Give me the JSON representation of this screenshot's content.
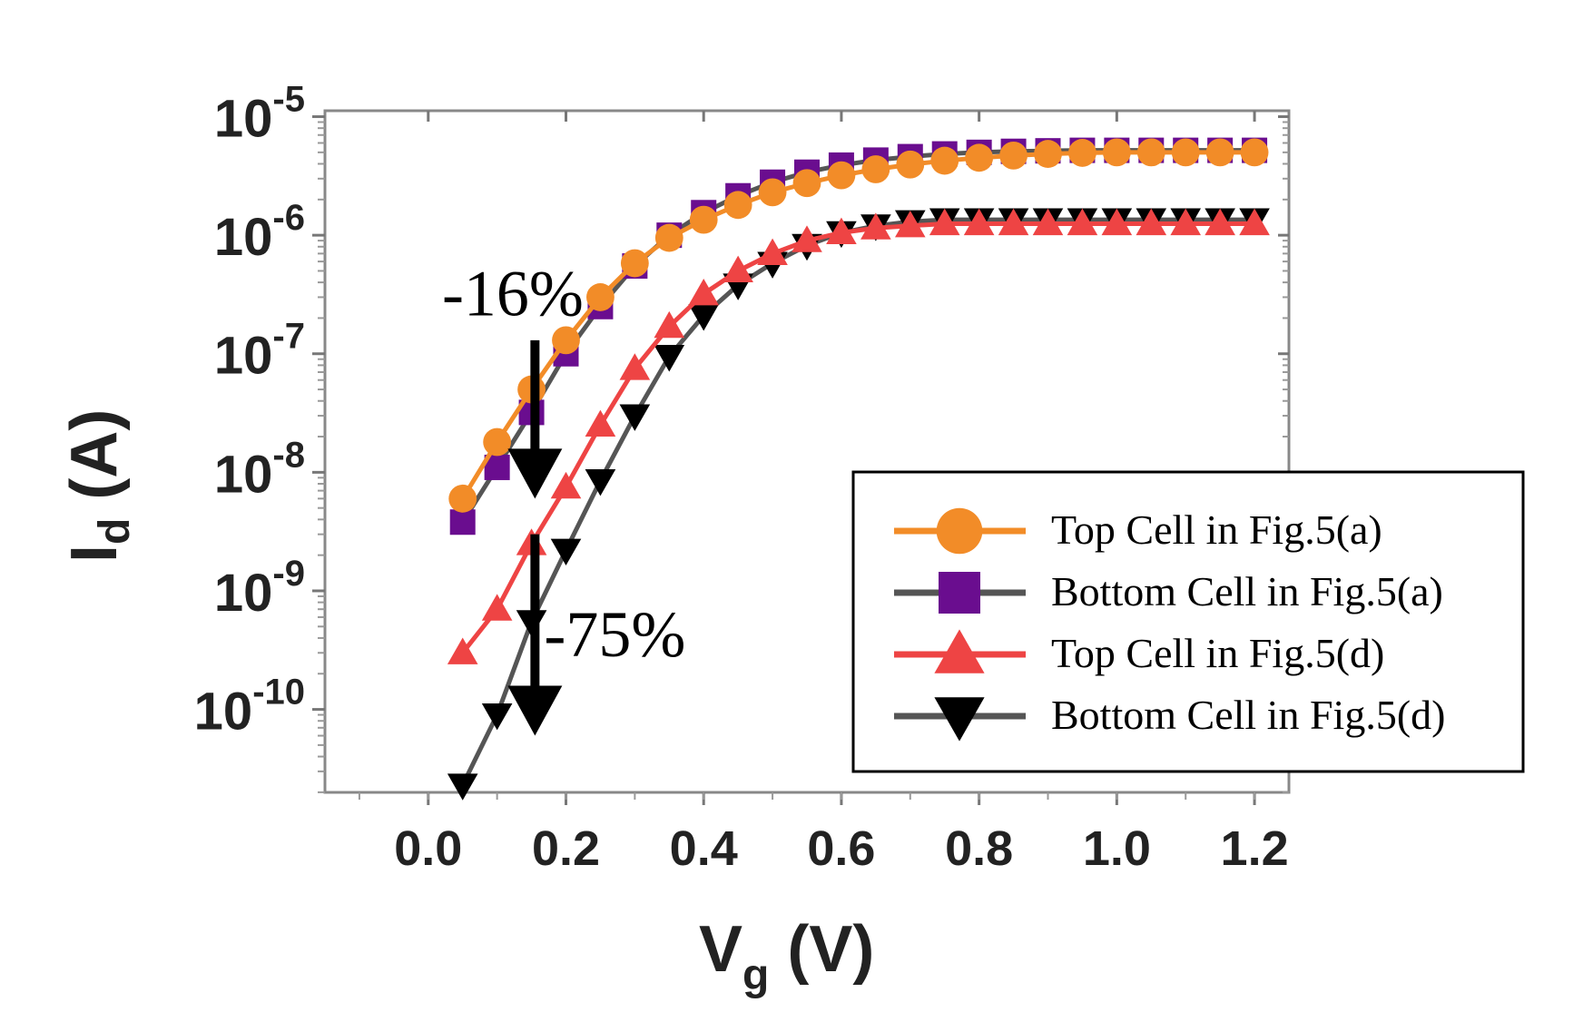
{
  "chart_data": {
    "type": "line",
    "xlabel": {
      "main": "V",
      "sub": "g",
      "unit": " (V)"
    },
    "ylabel": {
      "main": "I",
      "sub": "d",
      "unit": " (A)"
    },
    "xlim": [
      -0.15,
      1.25
    ],
    "ylim_log10": [
      -10.7,
      -4.95
    ],
    "y_scale": "log",
    "x_ticks": [
      0.0,
      0.2,
      0.4,
      0.6,
      0.8,
      1.0,
      1.2
    ],
    "x_tick_labels": [
      "0.0",
      "0.2",
      "0.4",
      "0.6",
      "0.8",
      "1.0",
      "1.2"
    ],
    "y_ticks": [
      {
        "base": "10",
        "exp": "-5",
        "log": -5
      },
      {
        "base": "10",
        "exp": "-6",
        "log": -6
      },
      {
        "base": "10",
        "exp": "-7",
        "log": -7
      },
      {
        "base": "10",
        "exp": "-8",
        "log": -8
      },
      {
        "base": "10",
        "exp": "-9",
        "log": -9
      },
      {
        "base": "10",
        "exp": "-10",
        "log": -10
      }
    ],
    "grid": false,
    "legend_position": "right-middle",
    "series": [
      {
        "name": "Top Cell in Fig.5(a)",
        "color": "#f28c28",
        "line_color": "#f28c28",
        "marker": "circle",
        "x": [
          0.05,
          0.1,
          0.15,
          0.2,
          0.25,
          0.3,
          0.35,
          0.4,
          0.45,
          0.5,
          0.55,
          0.6,
          0.65,
          0.7,
          0.75,
          0.8,
          0.85,
          0.9,
          0.95,
          1.0,
          1.05,
          1.1,
          1.15,
          1.2
        ],
        "y": [
          6e-09,
          1.8e-08,
          5e-08,
          1.3e-07,
          3e-07,
          5.8e-07,
          9.5e-07,
          1.35e-06,
          1.8e-06,
          2.3e-06,
          2.75e-06,
          3.2e-06,
          3.6e-06,
          3.95e-06,
          4.25e-06,
          4.5e-06,
          4.7e-06,
          4.85e-06,
          4.95e-06,
          5e-06,
          5e-06,
          5e-06,
          5e-06,
          5e-06
        ]
      },
      {
        "name": "Bottom Cell in Fig.5(a)",
        "color": "#6a0d8f",
        "line_color": "#555555",
        "marker": "square",
        "x": [
          0.05,
          0.1,
          0.15,
          0.2,
          0.25,
          0.3,
          0.35,
          0.4,
          0.45,
          0.5,
          0.55,
          0.6,
          0.65,
          0.7,
          0.75,
          0.8,
          0.85,
          0.9,
          0.95,
          1.0,
          1.05,
          1.1,
          1.15,
          1.2
        ],
        "y": [
          3.8e-09,
          1.1e-08,
          3.2e-08,
          1e-07,
          2.5e-07,
          5.5e-07,
          1e-06,
          1.55e-06,
          2.15e-06,
          2.8e-06,
          3.4e-06,
          3.9e-06,
          4.3e-06,
          4.6e-06,
          4.85e-06,
          5e-06,
          5.1e-06,
          5.15e-06,
          5.2e-06,
          5.2e-06,
          5.2e-06,
          5.2e-06,
          5.2e-06,
          5.2e-06
        ]
      },
      {
        "name": "Top Cell in Fig.5(d)",
        "color": "#ee4444",
        "line_color": "#ee4444",
        "marker": "triangle-up",
        "x": [
          0.05,
          0.1,
          0.15,
          0.2,
          0.25,
          0.3,
          0.35,
          0.4,
          0.45,
          0.5,
          0.55,
          0.6,
          0.65,
          0.7,
          0.75,
          0.8,
          0.85,
          0.9,
          0.95,
          1.0,
          1.05,
          1.1,
          1.15,
          1.2
        ],
        "y": [
          3e-10,
          7e-10,
          2.5e-09,
          7.5e-09,
          2.5e-08,
          7.5e-08,
          1.7e-07,
          3.2e-07,
          5e-07,
          7e-07,
          9e-07,
          1.05e-06,
          1.15e-06,
          1.2e-06,
          1.25e-06,
          1.25e-06,
          1.25e-06,
          1.25e-06,
          1.25e-06,
          1.25e-06,
          1.25e-06,
          1.25e-06,
          1.25e-06,
          1.25e-06
        ]
      },
      {
        "name": "Bottom Cell in Fig.5(d)",
        "color": "#000000",
        "line_color": "#555555",
        "marker": "triangle-down",
        "x": [
          0.05,
          0.1,
          0.15,
          0.2,
          0.25,
          0.3,
          0.35,
          0.4,
          0.45,
          0.5,
          0.55,
          0.6,
          0.65,
          0.7,
          0.75,
          0.8,
          0.85,
          0.9,
          0.95,
          1.0,
          1.05,
          1.1,
          1.15,
          1.2
        ],
        "y": [
          2.3e-11,
          9e-11,
          5.5e-10,
          2.2e-09,
          8.5e-09,
          3e-08,
          9.5e-08,
          2.1e-07,
          3.8e-07,
          5.8e-07,
          8.2e-07,
          1.05e-06,
          1.2e-06,
          1.3e-06,
          1.35e-06,
          1.35e-06,
          1.35e-06,
          1.35e-06,
          1.35e-06,
          1.35e-06,
          1.35e-06,
          1.35e-06,
          1.35e-06,
          1.35e-06
        ]
      }
    ],
    "annotations": [
      {
        "text": "-16%",
        "x": 0.02,
        "y": 3e-07,
        "arrow_x": 0.155,
        "arrow_y_from": 1.3e-07,
        "arrow_y_to": 6e-09
      },
      {
        "text": "-75%",
        "x": 0.155,
        "y": 4e-10,
        "arrow_x": 0.155,
        "arrow_y_from": 3e-09,
        "arrow_y_to": 6e-11
      }
    ]
  }
}
